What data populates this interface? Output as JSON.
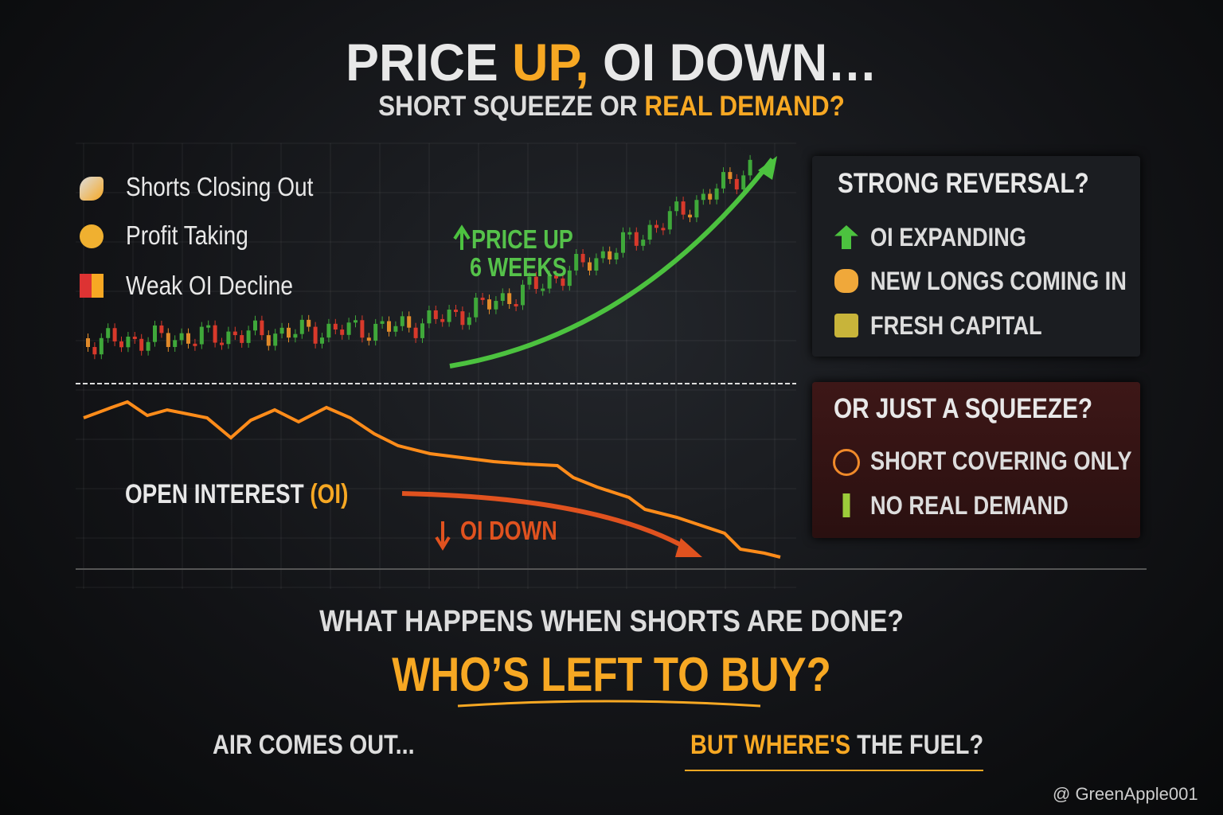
{
  "header": {
    "title": [
      "PRICE ",
      "UP,",
      " OI DOWN…"
    ],
    "subtitle": [
      "SHORT SQUEEZE OR ",
      "REAL DEMAND?"
    ]
  },
  "reasons": [
    "Shorts Closing Out",
    "Profit Taking",
    "Weak OI Decline"
  ],
  "chart_labels": {
    "price_up": [
      "PRICE UP",
      "6 WEEKS"
    ],
    "open_interest": [
      "OPEN INTEREST ",
      "(OI)"
    ],
    "oi_down": "OI DOWN"
  },
  "panels": [
    {
      "title": "STRONG REVERSAL?",
      "items": [
        "OI EXPANDING",
        "NEW LONGS COMING IN",
        "FRESH CAPITAL"
      ]
    },
    {
      "title": "OR JUST A SQUEEZE?",
      "items": [
        "SHORT COVERING ONLY",
        "NO REAL DEMAND"
      ]
    }
  ],
  "footer": {
    "question": "WHAT HAPPENS WHEN SHORTS ARE DONE?",
    "headline": "WHO’S LEFT TO BUY?",
    "left": "AIR COMES OUT...",
    "right": [
      "BUT WHERE'S",
      " THE FUEL?"
    ]
  },
  "watermark": "@ GreenApple001"
}
